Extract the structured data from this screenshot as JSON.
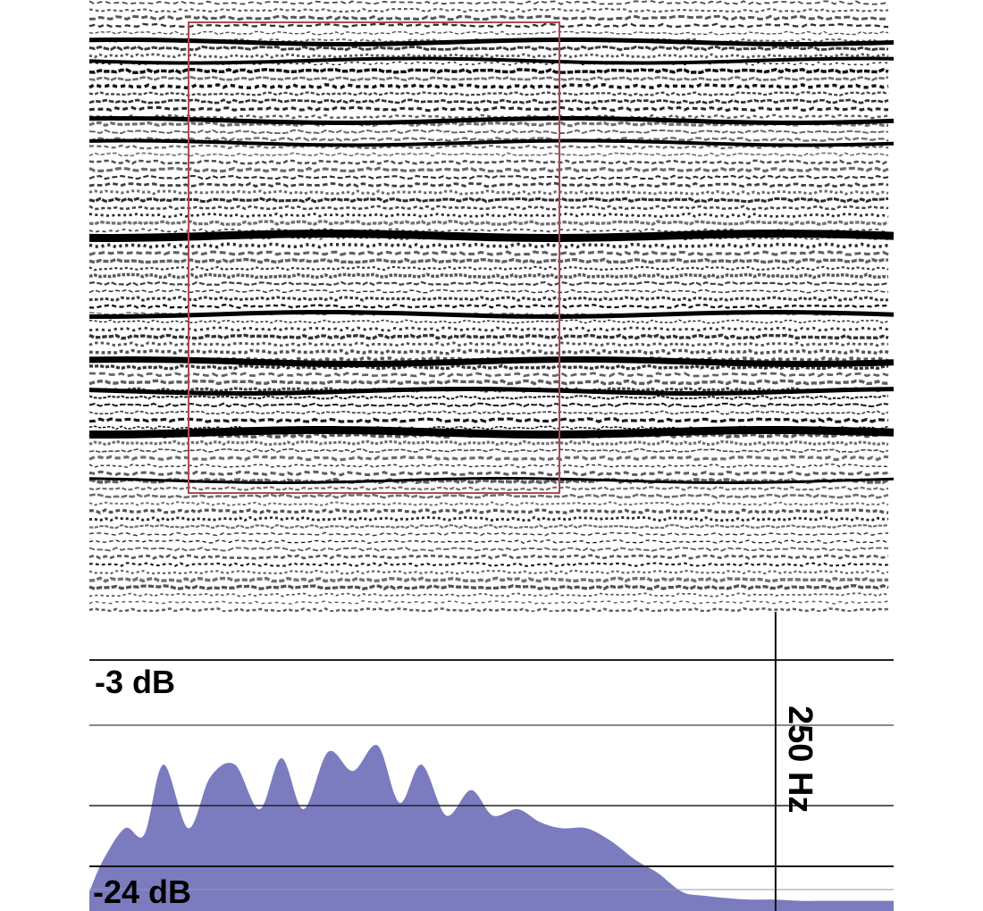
{
  "seismic_section": {
    "background": "#ffffff",
    "trace_color": "#000000",
    "selection_box_color": "#b04a50"
  },
  "chart_data": {
    "type": "area",
    "title": "",
    "xlabel": "",
    "ylabel": "",
    "fill_color": "#7b7bc0",
    "top_label": "-3 dB",
    "bottom_label": "-24 dB",
    "marker_label": "250 Hz",
    "marker_x": 250,
    "x": [
      0,
      5,
      13,
      20,
      27,
      36,
      44,
      53,
      62,
      70,
      78,
      87,
      96,
      105,
      113,
      121,
      130,
      139,
      147,
      156,
      164,
      172,
      181,
      190,
      199,
      207,
      216,
      224,
      233,
      241,
      250,
      259,
      267,
      276,
      285,
      293
    ],
    "values": [
      -24,
      -21.5,
      -19,
      -19.5,
      -14,
      -19,
      -15,
      -14,
      -17.5,
      -13.5,
      -17.5,
      -13,
      -14.5,
      -12.5,
      -17,
      -14,
      -18,
      -16,
      -18,
      -17.5,
      -18.5,
      -19,
      -19,
      -20,
      -21.5,
      -22.5,
      -24,
      -24.3,
      -24.5,
      -24.6,
      -24.6,
      -24.7,
      -24.7,
      -24.7,
      -24.7,
      -24.7
    ],
    "ylim": [
      -25.5,
      -2
    ],
    "xlim": [
      0,
      293
    ]
  }
}
